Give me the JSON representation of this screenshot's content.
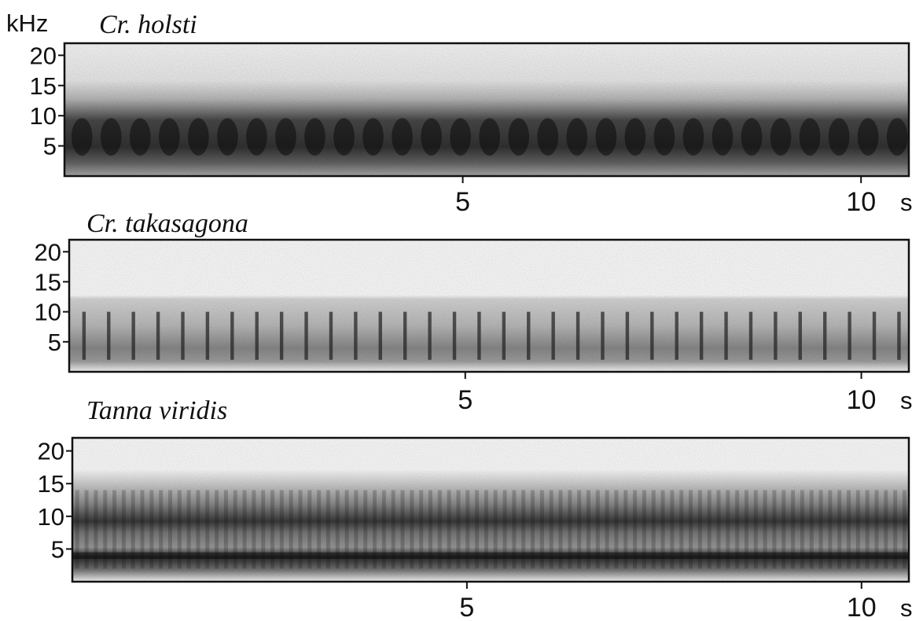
{
  "figure": {
    "ylabel_unit": "kHz",
    "xlabel_unit": "s"
  },
  "chart_data": [
    {
      "type": "heatmap",
      "title": "Cr. holsti",
      "ylabel": "kHz",
      "xlabel": "s",
      "ylim": [
        0,
        22
      ],
      "xlim": [
        0,
        10.6
      ],
      "yticks": [
        "20",
        "15",
        "10",
        "5"
      ],
      "ytick_values": [
        20,
        15,
        10,
        5
      ],
      "xticks": [
        "5",
        "10"
      ],
      "xtick_values": [
        5,
        10
      ],
      "grid": false,
      "energy_band_khz": [
        2,
        13
      ],
      "peak_band_khz": [
        4,
        9
      ],
      "pulse_count": 29,
      "colors": {
        "energy": "#1a1a1a",
        "background": "#ffffff"
      }
    },
    {
      "type": "heatmap",
      "title": "Cr. takasagona",
      "ylabel": "kHz",
      "xlabel": "s",
      "ylim": [
        0,
        22
      ],
      "xlim": [
        0,
        10.6
      ],
      "yticks": [
        "20",
        "15",
        "10",
        "5"
      ],
      "ytick_values": [
        20,
        15,
        10,
        5
      ],
      "xticks": [
        "5",
        "10"
      ],
      "xtick_values": [
        5,
        10
      ],
      "grid": false,
      "energy_band_khz": [
        2,
        12
      ],
      "peak_band_khz": [
        3,
        8
      ],
      "pulse_count": 34,
      "colors": {
        "energy": "#2a2a2a",
        "background": "#ffffff"
      }
    },
    {
      "type": "heatmap",
      "title": "Tanna viridis",
      "ylabel": "kHz",
      "xlabel": "s",
      "ylim": [
        0,
        22
      ],
      "xlim": [
        0,
        10.6
      ],
      "yticks": [
        "20",
        "15",
        "10",
        "5"
      ],
      "ytick_values": [
        20,
        15,
        10,
        5
      ],
      "xticks": [
        "5",
        "10"
      ],
      "xtick_values": [
        5,
        10
      ],
      "grid": false,
      "energy_band_khz": [
        2,
        15
      ],
      "peak_band_khz": [
        8,
        10
      ],
      "secondary_band_khz": [
        3.5,
        4.5
      ],
      "pulse_count": 90,
      "colors": {
        "energy": "#1e1e1e",
        "background": "#ffffff"
      }
    }
  ]
}
